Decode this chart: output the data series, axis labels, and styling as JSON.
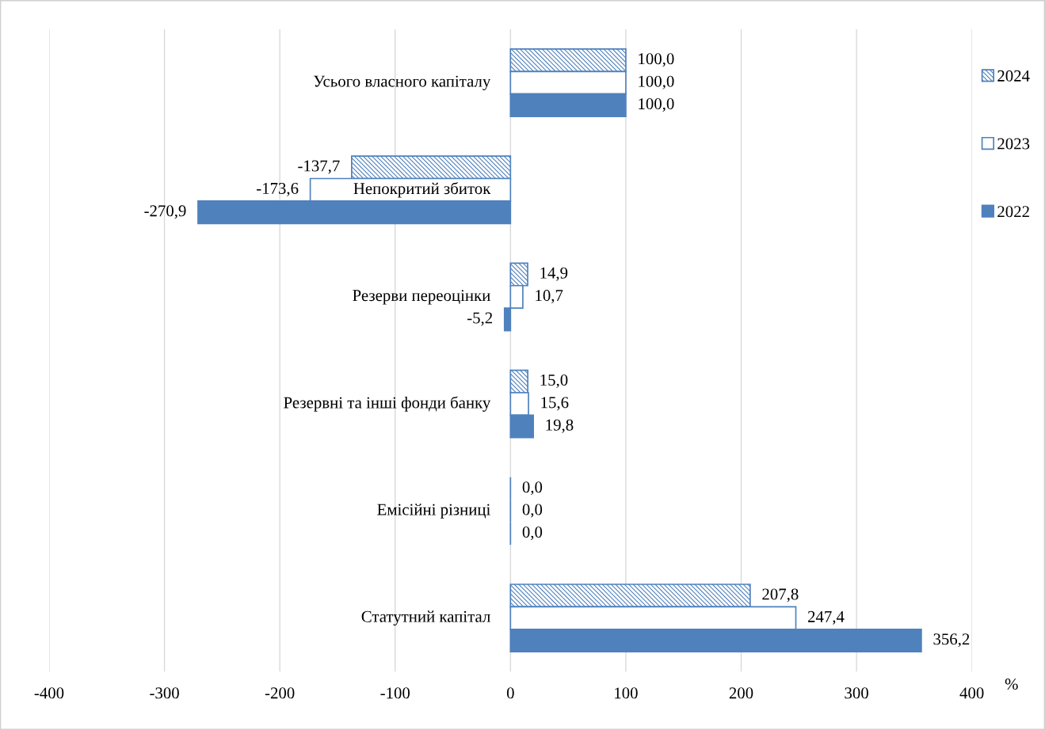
{
  "chart_data": {
    "type": "bar",
    "orientation": "horizontal",
    "categories": [
      "Усього власного капіталу",
      "Непокритий збиток",
      "Резерви переоцінки",
      "Резервні та інші фонди банку",
      "Емісійні різниці",
      "Статутний капітал"
    ],
    "series": [
      {
        "name": "2024",
        "color": "#4f81bd",
        "values": [
          100.0,
          -137.7,
          14.9,
          15.0,
          0.0,
          207.8
        ],
        "value_labels": [
          "100,0",
          "-137,7",
          "14,9",
          "15,0",
          "0,0",
          "207,8"
        ]
      },
      {
        "name": "2023",
        "color": "#4f81bd",
        "values": [
          100.0,
          -173.6,
          10.7,
          15.6,
          0.0,
          247.4
        ],
        "value_labels": [
          "100,0",
          "-173,6",
          "10,7",
          "15,6",
          "0,0",
          "247,4"
        ]
      },
      {
        "name": "2022",
        "color": "#4f81bd",
        "values": [
          100.0,
          -270.9,
          -5.2,
          19.8,
          0.0,
          356.2
        ],
        "value_labels": [
          "100,0",
          "-270,9",
          "-5,2",
          "19,8",
          "0,0",
          "356,2"
        ]
      }
    ],
    "xlabel": "%",
    "xlim": [
      -400,
      400
    ],
    "xticks": [
      -400,
      -300,
      -200,
      -100,
      0,
      100,
      200,
      300,
      400
    ],
    "grid": "x",
    "legend": "right"
  }
}
